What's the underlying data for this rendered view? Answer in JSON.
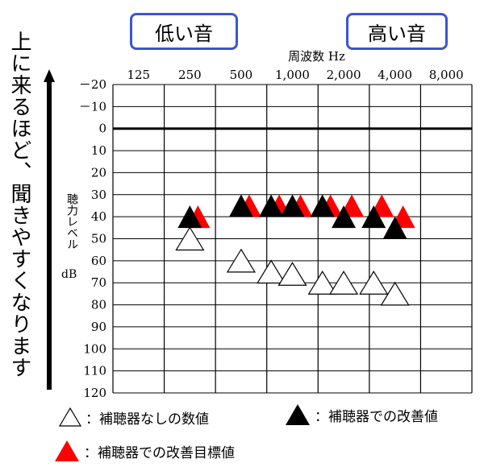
{
  "header": {
    "low_label": "低い音",
    "high_label": "高い音"
  },
  "side_caption": "上に来るほど、聞きやすくなります",
  "chart_data": {
    "type": "scatter",
    "title": "",
    "xlabel": "周波数 Hz",
    "ylabel": "聴力レベル",
    "ylabel_unit": "dB",
    "x_ticks": [
      "125",
      "250",
      "500",
      "1,000",
      "2,000",
      "4,000",
      "8,000"
    ],
    "x_scale": "log2",
    "y_ticks": [
      -20,
      -10,
      0,
      10,
      20,
      30,
      40,
      50,
      60,
      70,
      80,
      90,
      100,
      110,
      120
    ],
    "ylim": [
      -20,
      120
    ],
    "y_inverted": true,
    "zero_line_bold": true,
    "grid": true,
    "series": [
      {
        "name": "補聴器なしの数値",
        "marker": "triangle-outline",
        "color": "#000000",
        "fill": "#ffffff",
        "points": [
          {
            "x": 250,
            "y": 50
          },
          {
            "x": 500,
            "y": 60
          },
          {
            "x": 750,
            "y": 65
          },
          {
            "x": 1000,
            "y": 66
          },
          {
            "x": 1500,
            "y": 70
          },
          {
            "x": 2000,
            "y": 70
          },
          {
            "x": 3000,
            "y": 70
          },
          {
            "x": 4000,
            "y": 75
          }
        ]
      },
      {
        "name": "補聴器での改善目標値",
        "marker": "triangle-filled",
        "color": "#ff0000",
        "points": [
          {
            "x": 250,
            "y": 40
          },
          {
            "x": 500,
            "y": 35
          },
          {
            "x": 750,
            "y": 35
          },
          {
            "x": 1000,
            "y": 35
          },
          {
            "x": 1500,
            "y": 35
          },
          {
            "x": 2000,
            "y": 35
          },
          {
            "x": 3000,
            "y": 35
          },
          {
            "x": 4000,
            "y": 40
          }
        ]
      },
      {
        "name": "補聴器での改善値",
        "marker": "triangle-filled",
        "color": "#000000",
        "points": [
          {
            "x": 250,
            "y": 40
          },
          {
            "x": 500,
            "y": 35
          },
          {
            "x": 750,
            "y": 35
          },
          {
            "x": 1000,
            "y": 35
          },
          {
            "x": 1500,
            "y": 35
          },
          {
            "x": 2000,
            "y": 40
          },
          {
            "x": 3000,
            "y": 40
          },
          {
            "x": 4000,
            "y": 45
          }
        ]
      }
    ]
  },
  "legend": {
    "unaided": "：補聴器なしの数値",
    "aided": "：補聴器での改善値",
    "target": "：補聴器での改善目標値"
  }
}
